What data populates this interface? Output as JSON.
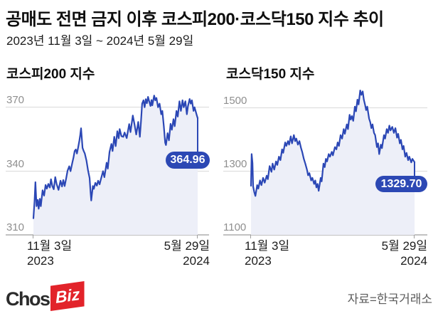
{
  "header": {
    "title": "공매도 전면 금지 이후 코스피200·코스닥150 지수 추이",
    "subtitle": "2023년 11월 3일 ~ 2024년 5월 29일"
  },
  "footer": {
    "logo_chosun": "Chosun",
    "logo_biz": "Biz",
    "logo_biz_bg": "#e2232a",
    "source": "자료=한국거래소"
  },
  "chart_data": [
    {
      "id": "kospi200",
      "type": "line",
      "title": "코스피200 지수",
      "ylim": [
        310,
        370
      ],
      "yticks": [
        {
          "label": "370",
          "value": 370
        },
        {
          "label": "340",
          "value": 340
        },
        {
          "label": "310",
          "value": 310
        }
      ],
      "x_axis": {
        "start_label": "11월 3일",
        "start_year": "2023",
        "end_label": "5월 29일",
        "end_year": "2024"
      },
      "last_value": 364.96,
      "last_value_label": "364.96",
      "line_color": "#2b47b5",
      "fill_color": "#edeff8",
      "badge_color": "#2c48b4",
      "points": [
        [
          0,
          317.8
        ],
        [
          0.007,
          326
        ],
        [
          0.012,
          334.8
        ],
        [
          0.019,
          323.5
        ],
        [
          0.026,
          326.5
        ],
        [
          0.032,
          322.3
        ],
        [
          0.039,
          327
        ],
        [
          0.045,
          323.5
        ],
        [
          0.056,
          331
        ],
        [
          0.065,
          328.5
        ],
        [
          0.074,
          333.5
        ],
        [
          0.082,
          331.8
        ],
        [
          0.091,
          334
        ],
        [
          0.1,
          332.3
        ],
        [
          0.107,
          336.2
        ],
        [
          0.115,
          333
        ],
        [
          0.124,
          331.5
        ],
        [
          0.133,
          337.2
        ],
        [
          0.141,
          334
        ],
        [
          0.153,
          331.2
        ],
        [
          0.165,
          335.5
        ],
        [
          0.174,
          332.8
        ],
        [
          0.182,
          335.8
        ],
        [
          0.19,
          333
        ],
        [
          0.199,
          336.5
        ],
        [
          0.208,
          340.2
        ],
        [
          0.218,
          342.3
        ],
        [
          0.226,
          340
        ],
        [
          0.237,
          344
        ],
        [
          0.244,
          346.5
        ],
        [
          0.251,
          349.5
        ],
        [
          0.258,
          350.2
        ],
        [
          0.265,
          348.3
        ],
        [
          0.272,
          351
        ],
        [
          0.28,
          354.5
        ],
        [
          0.285,
          357
        ],
        [
          0.29,
          360.2
        ],
        [
          0.296,
          354
        ],
        [
          0.299,
          351
        ],
        [
          0.306,
          349.5
        ],
        [
          0.313,
          348.3
        ],
        [
          0.323,
          345
        ],
        [
          0.333,
          340.2
        ],
        [
          0.342,
          336.8
        ],
        [
          0.348,
          330
        ],
        [
          0.352,
          326.2
        ],
        [
          0.362,
          333
        ],
        [
          0.368,
          331.7
        ],
        [
          0.377,
          334.5
        ],
        [
          0.386,
          333.2
        ],
        [
          0.394,
          335.5
        ],
        [
          0.403,
          333.8
        ],
        [
          0.411,
          336.2
        ],
        [
          0.424,
          340
        ],
        [
          0.432,
          337.2
        ],
        [
          0.446,
          344
        ],
        [
          0.453,
          341.2
        ],
        [
          0.463,
          349
        ],
        [
          0.475,
          352.8
        ],
        [
          0.482,
          349.5
        ],
        [
          0.492,
          356.2
        ],
        [
          0.501,
          351.8
        ],
        [
          0.511,
          358.8
        ],
        [
          0.519,
          355.5
        ],
        [
          0.525,
          359.8
        ],
        [
          0.536,
          356.5
        ],
        [
          0.547,
          356.2
        ],
        [
          0.555,
          358.2
        ],
        [
          0.568,
          355.6
        ],
        [
          0.583,
          362.2
        ],
        [
          0.591,
          358.4
        ],
        [
          0.605,
          366.2
        ],
        [
          0.615,
          362.2
        ],
        [
          0.626,
          357.3
        ],
        [
          0.638,
          363.2
        ],
        [
          0.648,
          356.2
        ],
        [
          0.655,
          363.5
        ],
        [
          0.662,
          371.8
        ],
        [
          0.67,
          373.4
        ],
        [
          0.677,
          370.1
        ],
        [
          0.684,
          373.9
        ],
        [
          0.691,
          372
        ],
        [
          0.698,
          375
        ],
        [
          0.706,
          372.5
        ],
        [
          0.713,
          370.7
        ],
        [
          0.719,
          373.5
        ],
        [
          0.724,
          371
        ],
        [
          0.735,
          375.6
        ],
        [
          0.742,
          373.4
        ],
        [
          0.749,
          374.5
        ],
        [
          0.759,
          370.1
        ],
        [
          0.768,
          371.8
        ],
        [
          0.778,
          366.8
        ],
        [
          0.785,
          368.4
        ],
        [
          0.794,
          361.2
        ],
        [
          0.802,
          353.4
        ],
        [
          0.807,
          352.3
        ],
        [
          0.817,
          357.9
        ],
        [
          0.825,
          354.5
        ],
        [
          0.835,
          362.3
        ],
        [
          0.843,
          359.5
        ],
        [
          0.853,
          364.5
        ],
        [
          0.86,
          361.2
        ],
        [
          0.871,
          368.4
        ],
        [
          0.879,
          365.7
        ],
        [
          0.889,
          372.9
        ],
        [
          0.898,
          368.4
        ],
        [
          0.908,
          373.4
        ],
        [
          0.915,
          370.1
        ],
        [
          0.925,
          372.9
        ],
        [
          0.934,
          366.8
        ],
        [
          0.941,
          370.7
        ],
        [
          0.951,
          374
        ],
        [
          0.958,
          371.8
        ],
        [
          0.965,
          373.4
        ],
        [
          0.975,
          368.4
        ],
        [
          0.981,
          370.1
        ],
        [
          0.994,
          366.5
        ],
        [
          1,
          364.96
        ]
      ]
    },
    {
      "id": "kosdaq150",
      "type": "line",
      "title": "코스닥150 지수",
      "ylim": [
        1100,
        1500
      ],
      "yticks": [
        {
          "label": "1500",
          "value": 1500
        },
        {
          "label": "1300",
          "value": 1300
        },
        {
          "label": "1100",
          "value": 1100
        }
      ],
      "x_axis": {
        "start_label": "11월 3일",
        "start_year": "2023",
        "end_label": "5월 29일",
        "end_year": "2024"
      },
      "last_value": 1329.7,
      "last_value_label": "1329.70",
      "line_color": "#2b47b5",
      "fill_color": "#edeff8",
      "badge_color": "#2c48b4",
      "points": [
        [
          0,
          1255
        ],
        [
          0.004,
          1355
        ],
        [
          0.009,
          1327
        ],
        [
          0.013,
          1253
        ],
        [
          0.02,
          1235
        ],
        [
          0.027,
          1223
        ],
        [
          0.038,
          1257
        ],
        [
          0.045,
          1246
        ],
        [
          0.055,
          1272
        ],
        [
          0.064,
          1257
        ],
        [
          0.074,
          1280
        ],
        [
          0.084,
          1265
        ],
        [
          0.096,
          1287
        ],
        [
          0.103,
          1276
        ],
        [
          0.114,
          1317
        ],
        [
          0.125,
          1299
        ],
        [
          0.132,
          1325
        ],
        [
          0.142,
          1306
        ],
        [
          0.153,
          1332
        ],
        [
          0.161,
          1321
        ],
        [
          0.171,
          1347
        ],
        [
          0.18,
          1336
        ],
        [
          0.19,
          1370
        ],
        [
          0.197,
          1359
        ],
        [
          0.209,
          1392
        ],
        [
          0.216,
          1381
        ],
        [
          0.226,
          1396
        ],
        [
          0.233,
          1385
        ],
        [
          0.243,
          1411
        ],
        [
          0.251,
          1389
        ],
        [
          0.262,
          1415
        ],
        [
          0.27,
          1396
        ],
        [
          0.277,
          1404
        ],
        [
          0.287,
          1385
        ],
        [
          0.296,
          1396
        ],
        [
          0.306,
          1374
        ],
        [
          0.313,
          1362
        ],
        [
          0.323,
          1340
        ],
        [
          0.332,
          1325
        ],
        [
          0.342,
          1306
        ],
        [
          0.349,
          1288
        ],
        [
          0.357,
          1295
        ],
        [
          0.368,
          1272
        ],
        [
          0.375,
          1280
        ],
        [
          0.386,
          1261
        ],
        [
          0.393,
          1272
        ],
        [
          0.4,
          1250
        ],
        [
          0.407,
          1261
        ],
        [
          0.414,
          1239
        ],
        [
          0.426,
          1280
        ],
        [
          0.432,
          1269
        ],
        [
          0.443,
          1325
        ],
        [
          0.451,
          1314
        ],
        [
          0.458,
          1340
        ],
        [
          0.465,
          1332
        ],
        [
          0.475,
          1355
        ],
        [
          0.483,
          1347
        ],
        [
          0.494,
          1362
        ],
        [
          0.501,
          1351
        ],
        [
          0.513,
          1377
        ],
        [
          0.522,
          1370
        ],
        [
          0.53,
          1392
        ],
        [
          0.538,
          1381
        ],
        [
          0.548,
          1415
        ],
        [
          0.557,
          1404
        ],
        [
          0.567,
          1434
        ],
        [
          0.574,
          1419
        ],
        [
          0.586,
          1449
        ],
        [
          0.593,
          1434
        ],
        [
          0.603,
          1479
        ],
        [
          0.61,
          1464
        ],
        [
          0.617,
          1475
        ],
        [
          0.625,
          1460
        ],
        [
          0.635,
          1505
        ],
        [
          0.642,
          1490
        ],
        [
          0.651,
          1527
        ],
        [
          0.658,
          1512
        ],
        [
          0.668,
          1556
        ],
        [
          0.675,
          1542
        ],
        [
          0.683,
          1553
        ],
        [
          0.69,
          1527
        ],
        [
          0.697,
          1512
        ],
        [
          0.704,
          1494
        ],
        [
          0.711,
          1505
        ],
        [
          0.722,
          1467
        ],
        [
          0.729,
          1456
        ],
        [
          0.736,
          1437
        ],
        [
          0.743,
          1449
        ],
        [
          0.752,
          1422
        ],
        [
          0.759,
          1415
        ],
        [
          0.77,
          1377
        ],
        [
          0.777,
          1389
        ],
        [
          0.784,
          1355
        ],
        [
          0.794,
          1385
        ],
        [
          0.801,
          1374
        ],
        [
          0.813,
          1415
        ],
        [
          0.82,
          1404
        ],
        [
          0.83,
          1434
        ],
        [
          0.838,
          1422
        ],
        [
          0.846,
          1445
        ],
        [
          0.853,
          1430
        ],
        [
          0.864,
          1441
        ],
        [
          0.874,
          1422
        ],
        [
          0.883,
          1437
        ],
        [
          0.893,
          1407
        ],
        [
          0.9,
          1419
        ],
        [
          0.91,
          1389
        ],
        [
          0.917,
          1400
        ],
        [
          0.926,
          1370
        ],
        [
          0.933,
          1381
        ],
        [
          0.943,
          1347
        ],
        [
          0.951,
          1359
        ],
        [
          0.961,
          1336
        ],
        [
          0.968,
          1347
        ],
        [
          0.98,
          1329
        ],
        [
          0.987,
          1340
        ],
        [
          1,
          1329.7
        ]
      ]
    }
  ]
}
